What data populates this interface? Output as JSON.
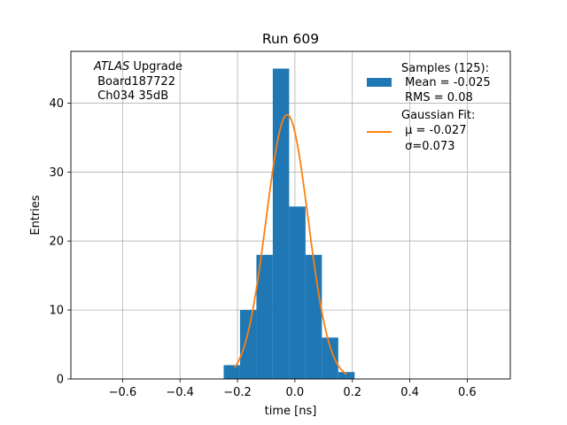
{
  "chart_data": {
    "type": "bar",
    "title": "Run 609",
    "xlabel": "time [ns]",
    "ylabel": "Entries",
    "xlim": [
      -0.78,
      0.75
    ],
    "ylim": [
      0,
      47.5
    ],
    "xticks": [
      -0.6,
      -0.4,
      -0.2,
      0.0,
      0.2,
      0.4,
      0.6
    ],
    "xtick_labels": [
      "−0.6",
      "−0.4",
      "−0.2",
      "0.0",
      "0.2",
      "0.4",
      "0.6"
    ],
    "yticks": [
      0,
      10,
      20,
      30,
      40
    ],
    "ytick_labels": [
      "0",
      "10",
      "20",
      "30",
      "40"
    ],
    "grid": true,
    "histogram": {
      "name": "Samples (125):",
      "color": "#1f77b4",
      "bin_edges": [
        -0.248,
        -0.191,
        -0.134,
        -0.077,
        -0.02,
        0.037,
        0.094,
        0.151,
        0.208
      ],
      "counts": [
        2,
        10,
        18,
        45,
        25,
        18,
        6,
        1
      ]
    },
    "fit": {
      "name": "Gaussian Fit:",
      "color": "#ff7f0e",
      "amplitude": 38.3,
      "mu": -0.027,
      "sigma": 0.073,
      "x_range": [
        -0.21,
        0.18
      ]
    },
    "legend": {
      "placement": "top-right",
      "hist_lines": [
        "Samples (125):",
        " Mean = -0.025",
        " RMS = 0.08"
      ],
      "fit_lines": [
        "Gaussian Fit:",
        " μ = -0.027",
        " σ=0.073"
      ]
    },
    "annotation": {
      "placement": "top-left",
      "italic": "ATLAS",
      "rest": " Upgrade",
      "lines": [
        " Board187722",
        " Ch034 35dB"
      ]
    }
  }
}
